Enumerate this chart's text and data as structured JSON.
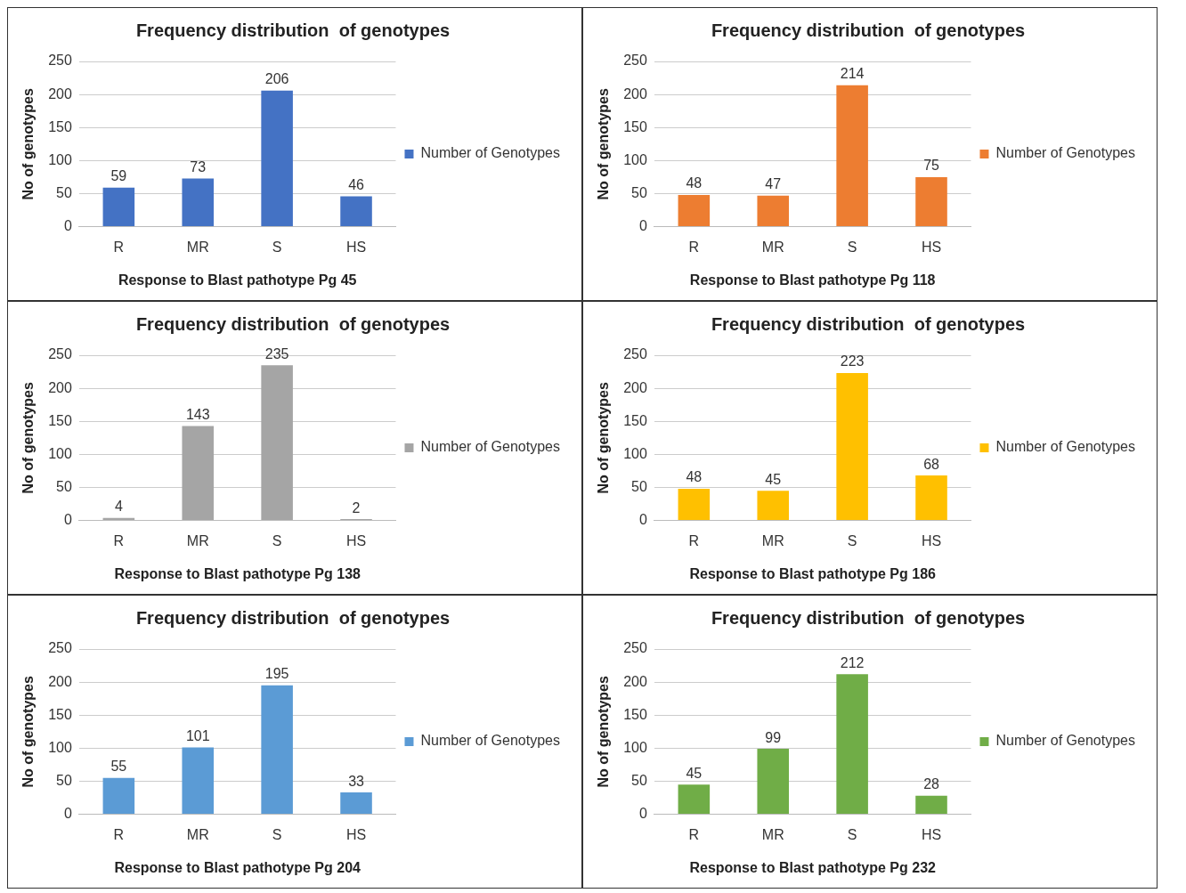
{
  "chart_data": [
    {
      "type": "bar",
      "title": "Frequency distribution  of genotypes",
      "xlabel": "Response to Blast pathotype Pg 45",
      "ylabel": "No of genotypes",
      "categories": [
        "R",
        "MR",
        "S",
        "HS"
      ],
      "series": [
        {
          "name": "Number of Genotypes",
          "color": "#4472c4",
          "values": [
            59,
            73,
            206,
            46
          ]
        }
      ],
      "ylim": [
        0,
        250
      ],
      "yticks": [
        0,
        50,
        100,
        150,
        200,
        250
      ],
      "grid": "y",
      "legend": "right",
      "data_labels": true
    },
    {
      "type": "bar",
      "title": "Frequency distribution  of genotypes",
      "xlabel": "Response to Blast pathotype Pg 118",
      "ylabel": "No of genotypes",
      "categories": [
        "R",
        "MR",
        "S",
        "HS"
      ],
      "series": [
        {
          "name": "Number of Genotypes",
          "color": "#ed7d31",
          "values": [
            48,
            47,
            214,
            75
          ]
        }
      ],
      "ylim": [
        0,
        250
      ],
      "yticks": [
        0,
        50,
        100,
        150,
        200,
        250
      ],
      "grid": "y",
      "legend": "right",
      "data_labels": true
    },
    {
      "type": "bar",
      "title": "Frequency distribution  of genotypes",
      "xlabel": "Response to Blast pathotype Pg 138",
      "ylabel": "No of genotypes",
      "categories": [
        "R",
        "MR",
        "S",
        "HS"
      ],
      "series": [
        {
          "name": "Number of Genotypes",
          "color": "#a5a5a5",
          "values": [
            4,
            143,
            235,
            2
          ]
        }
      ],
      "ylim": [
        0,
        250
      ],
      "yticks": [
        0,
        50,
        100,
        150,
        200,
        250
      ],
      "grid": "y",
      "legend": "right",
      "data_labels": true
    },
    {
      "type": "bar",
      "title": "Frequency distribution  of genotypes",
      "xlabel": "Response to Blast pathotype Pg 186",
      "ylabel": "No of genotypes",
      "categories": [
        "R",
        "MR",
        "S",
        "HS"
      ],
      "series": [
        {
          "name": "Number of Genotypes",
          "color": "#ffc000",
          "values": [
            48,
            45,
            223,
            68
          ]
        }
      ],
      "ylim": [
        0,
        250
      ],
      "yticks": [
        0,
        50,
        100,
        150,
        200,
        250
      ],
      "grid": "y",
      "legend": "right",
      "data_labels": true
    },
    {
      "type": "bar",
      "title": "Frequency distribution  of genotypes",
      "xlabel": "Response to Blast pathotype Pg 204",
      "ylabel": "No of genotypes",
      "categories": [
        "R",
        "MR",
        "S",
        "HS"
      ],
      "series": [
        {
          "name": "Number of Genotypes",
          "color": "#5b9bd5",
          "values": [
            55,
            101,
            195,
            33
          ]
        }
      ],
      "ylim": [
        0,
        250
      ],
      "yticks": [
        0,
        50,
        100,
        150,
        200,
        250
      ],
      "grid": "y",
      "legend": "right",
      "data_labels": true
    },
    {
      "type": "bar",
      "title": "Frequency distribution  of genotypes",
      "xlabel": "Response to Blast pathotype Pg 232",
      "ylabel": "No of genotypes",
      "categories": [
        "R",
        "MR",
        "S",
        "HS"
      ],
      "series": [
        {
          "name": "Number of Genotypes",
          "color": "#70ad47",
          "values": [
            45,
            99,
            212,
            28
          ]
        }
      ],
      "ylim": [
        0,
        250
      ],
      "yticks": [
        0,
        50,
        100,
        150,
        200,
        250
      ],
      "grid": "y",
      "legend": "right",
      "data_labels": true
    }
  ]
}
